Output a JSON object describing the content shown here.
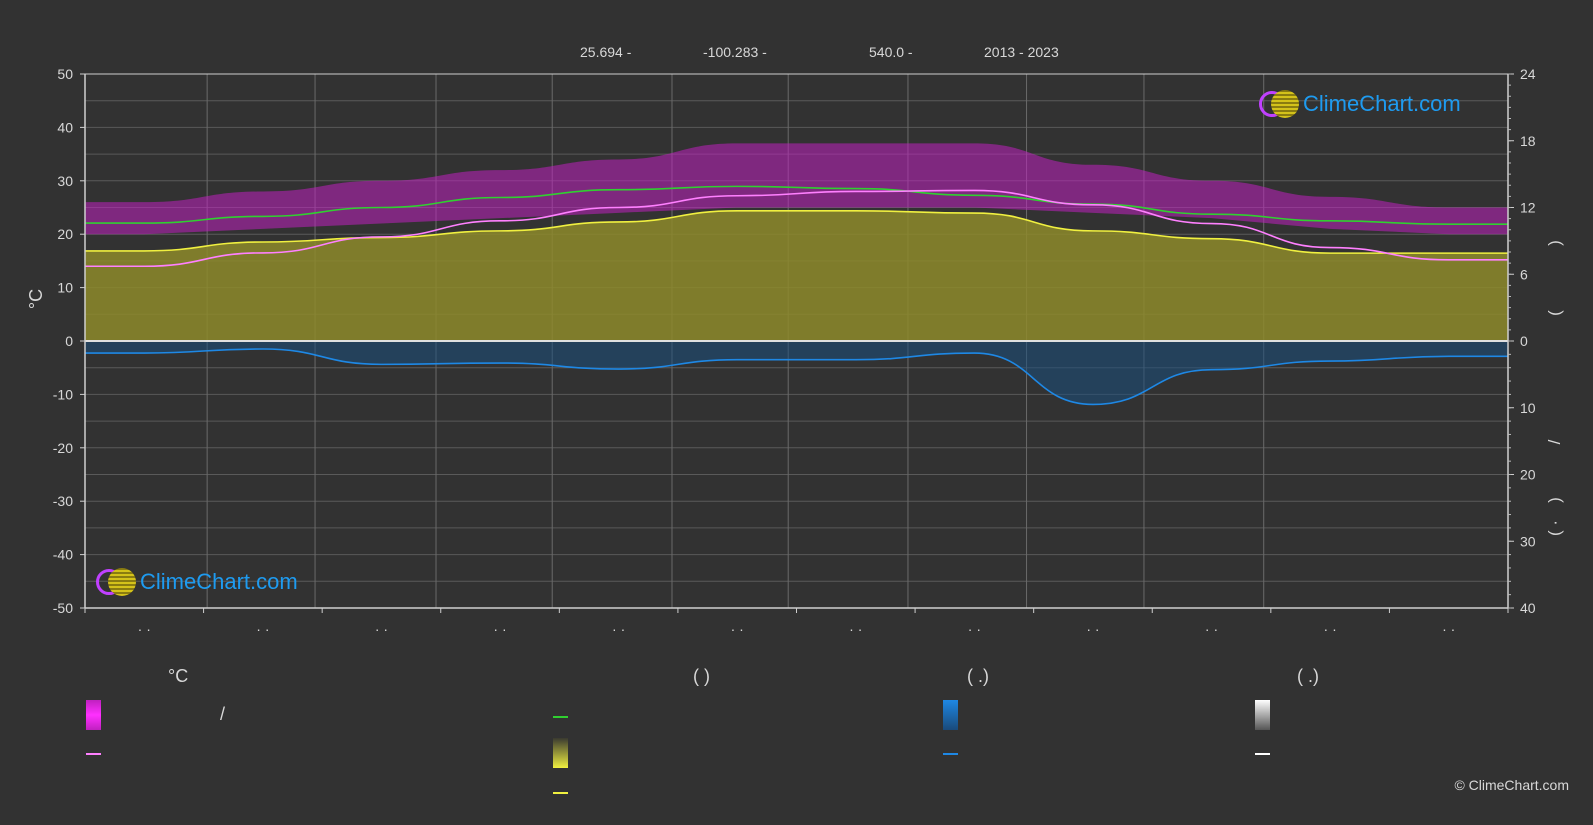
{
  "header": {
    "lat": "25.694 -",
    "lon": "-100.283 -",
    "elev": "540.0 -",
    "years": "2013 - 2023"
  },
  "logo_text": "ClimeChart.com",
  "copyright": "© ClimeChart.com",
  "axis": {
    "left_unit": "°C",
    "left_ticks": [
      50,
      40,
      30,
      20,
      10,
      0,
      -10,
      -20,
      -30,
      -40,
      -50
    ],
    "right_top_ticks": [
      24,
      18,
      12,
      6,
      0
    ],
    "right_bottom_ticks": [
      10,
      20,
      30,
      40
    ],
    "right_label_upper_1": ")",
    "right_label_upper_2": "(",
    "right_label_lower_1": "/",
    "right_label_lower_2": ")",
    "right_label_lower_3": "( ·",
    "month_labels": [
      "· ·",
      "· ·",
      "· ·",
      "· ·",
      "· ·",
      "· ·",
      "· ·",
      "· ·",
      "· ·",
      "· ·",
      "· ·",
      "· ·"
    ]
  },
  "legend": {
    "col1_title": "°C",
    "col1_row1_text": "/",
    "col2_title": "(            )",
    "col3_title": "(    .)",
    "col4_title": "(    .)"
  },
  "colors": {
    "background": "#323232",
    "grid": "#5a5a5a",
    "temp_range": "#c020c0",
    "daily_mean": "#ff80ff",
    "daylight": "#30d030",
    "sunshine": "#f0f040",
    "sunshine_fill": "#8d8a2a",
    "precip": "#1e88e5",
    "snow": "#ffffff"
  },
  "chart_data": {
    "type": "line",
    "x_range": [
      0,
      12
    ],
    "ylim_left": [
      -50,
      50
    ],
    "ylim_right_top": [
      0,
      24
    ],
    "ylim_right_bottom": [
      40,
      0
    ],
    "series": [
      {
        "key": "daylight_hours",
        "x": [
          0.5,
          1.5,
          2.5,
          3.5,
          4.5,
          5.5,
          6.5,
          7.5,
          8.5,
          9.5,
          10.5,
          11.5
        ],
        "values": [
          10.6,
          11.2,
          12.0,
          12.9,
          13.6,
          13.9,
          13.7,
          13.1,
          12.3,
          11.4,
          10.8,
          10.5
        ]
      },
      {
        "key": "sunshine_hours",
        "x": [
          0.5,
          1.5,
          2.5,
          3.5,
          4.5,
          5.5,
          6.5,
          7.5,
          8.5,
          9.5,
          10.5,
          11.5
        ],
        "values": [
          8.1,
          8.9,
          9.3,
          9.9,
          10.7,
          11.7,
          11.7,
          11.5,
          9.9,
          9.2,
          7.9,
          7.9
        ]
      },
      {
        "key": "daily_mean_temp",
        "x": [
          0.5,
          1.5,
          2.5,
          3.5,
          4.5,
          5.5,
          6.5,
          7.5,
          8.5,
          9.5,
          10.5,
          11.5
        ],
        "values": [
          14.0,
          16.5,
          19.5,
          22.5,
          25.0,
          27.2,
          28.0,
          28.2,
          25.5,
          22.0,
          17.5,
          15.2
        ]
      },
      {
        "key": "precip_mm",
        "x": [
          0.5,
          1.5,
          2.5,
          3.5,
          4.5,
          5.5,
          6.5,
          7.5,
          8.5,
          9.5,
          10.5,
          11.5
        ],
        "values": [
          1.8,
          1.2,
          3.5,
          3.3,
          4.2,
          2.8,
          2.8,
          1.8,
          9.5,
          4.3,
          3.0,
          2.3
        ]
      }
    ],
    "temp_band_top": [
      26,
      28,
      30,
      32,
      34,
      37,
      37,
      37,
      33,
      30,
      27,
      25
    ],
    "temp_band_bottom": [
      20,
      21,
      22,
      23,
      24,
      25,
      25,
      25,
      24,
      23,
      21,
      20
    ]
  }
}
